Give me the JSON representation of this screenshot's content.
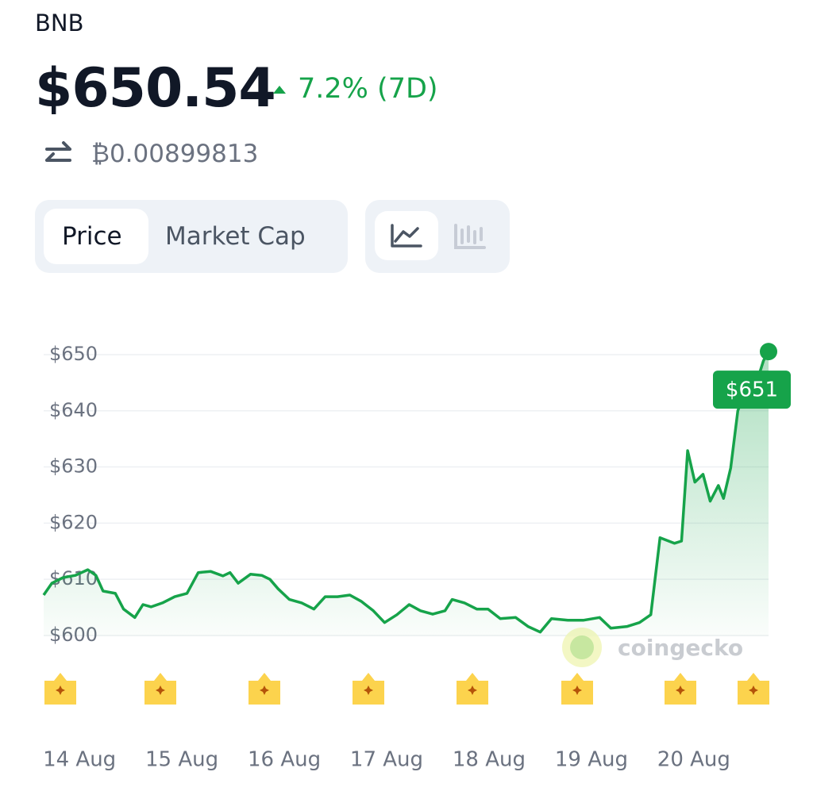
{
  "header": {
    "symbol": "BNB",
    "price": "$650.54",
    "change": "7.2% (7D)",
    "btc_price": "₿0.00899813"
  },
  "tabs": [
    "Price",
    "Market Cap"
  ],
  "chart_data": {
    "type": "line",
    "color": "#16a34a",
    "grid": true,
    "watermark": "coingecko",
    "end_label": "$651",
    "x": [
      13.65,
      13.73,
      13.84,
      13.96,
      14.08,
      14.16,
      14.23,
      14.35,
      14.43,
      14.54,
      14.62,
      14.7,
      14.81,
      14.93,
      15.05,
      15.16,
      15.28,
      15.4,
      15.47,
      15.55,
      15.67,
      15.78,
      15.86,
      15.94,
      16.05,
      16.17,
      16.29,
      16.4,
      16.52,
      16.64,
      16.75,
      16.87,
      16.98,
      17.1,
      17.22,
      17.33,
      17.45,
      17.57,
      17.64,
      17.76,
      17.88,
      17.99,
      18.11,
      18.26,
      18.38,
      18.5,
      18.61,
      18.77,
      18.92,
      19.08,
      19.19,
      19.35,
      19.47,
      19.58,
      19.67,
      19.81,
      19.88,
      19.94,
      20.01,
      20.09,
      20.16,
      20.24,
      20.29,
      20.36,
      20.43,
      20.51,
      20.63,
      20.68,
      20.73
    ],
    "values": [
      607.2,
      609.3,
      610.3,
      610.7,
      611.7,
      610.7,
      607.9,
      607.5,
      604.7,
      603.2,
      605.5,
      605.1,
      605.8,
      606.9,
      607.5,
      611.2,
      611.4,
      610.6,
      611.2,
      609.3,
      610.9,
      610.7,
      610.0,
      608.3,
      606.4,
      605.8,
      604.7,
      606.9,
      606.9,
      607.2,
      606.1,
      604.4,
      602.3,
      603.7,
      605.5,
      604.4,
      603.8,
      604.4,
      606.4,
      605.8,
      604.7,
      604.7,
      603.0,
      603.2,
      601.6,
      600.6,
      603.0,
      602.7,
      602.7,
      603.2,
      601.3,
      601.6,
      602.3,
      603.7,
      617.4,
      616.4,
      616.8,
      632.9,
      627.3,
      628.7,
      623.9,
      626.7,
      624.4,
      629.8,
      640.0,
      643.9,
      646.0,
      648.9,
      650.54
    ],
    "xlim": [
      13.65,
      20.73
    ],
    "xticks": [
      {
        "value": 14,
        "label": "14 Aug"
      },
      {
        "value": 15,
        "label": "15 Aug"
      },
      {
        "value": 16,
        "label": "16 Aug"
      },
      {
        "value": 17,
        "label": "17 Aug"
      },
      {
        "value": 18,
        "label": "18 Aug"
      },
      {
        "value": 19,
        "label": "19 Aug"
      },
      {
        "value": 20,
        "label": "20 Aug"
      }
    ],
    "ylim": [
      597,
      652
    ],
    "yticks": [
      {
        "value": 600,
        "label": "$600"
      },
      {
        "value": 610,
        "label": "$610"
      },
      {
        "value": 620,
        "label": "$620"
      },
      {
        "value": 630,
        "label": "$630"
      },
      {
        "value": 640,
        "label": "$640"
      },
      {
        "value": 650,
        "label": "$650"
      }
    ]
  }
}
